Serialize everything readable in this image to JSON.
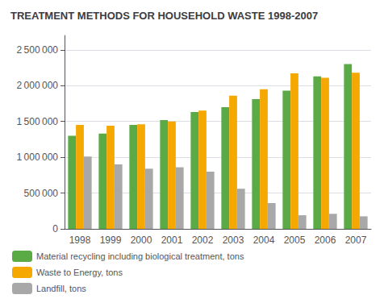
{
  "chart_data": {
    "type": "bar",
    "title": "TREATMENT METHODS FOR HOUSEHOLD WASTE 1998-2007",
    "categories": [
      "1998",
      "1999",
      "2000",
      "2001",
      "2002",
      "2003",
      "2004",
      "2005",
      "2006",
      "2007"
    ],
    "series": [
      {
        "name": "Material recycling including biological treatment, tons",
        "color": "#5aaa46",
        "values": [
          1300000,
          1330000,
          1450000,
          1520000,
          1630000,
          1700000,
          1810000,
          1930000,
          2130000,
          2300000
        ]
      },
      {
        "name": "Waste to Energy, tons",
        "color": "#f5a800",
        "values": [
          1450000,
          1440000,
          1460000,
          1500000,
          1650000,
          1860000,
          1950000,
          2170000,
          2110000,
          2180000
        ]
      },
      {
        "name": "Landfill, tons",
        "color": "#a8a8a8",
        "values": [
          1010000,
          900000,
          840000,
          860000,
          800000,
          560000,
          360000,
          190000,
          210000,
          175000
        ]
      }
    ],
    "ylim": [
      0,
      2700000
    ],
    "yticks": [
      0,
      {
        "value": 500000,
        "label": "500 000"
      },
      {
        "value": 1000000,
        "label": "1 000 000"
      },
      {
        "value": 1500000,
        "label": "1 500 000"
      },
      {
        "value": 2000000,
        "label": "2 000 000"
      },
      {
        "value": 2500000,
        "label": "2 500 000"
      }
    ],
    "grid": true,
    "legend": "lower left"
  }
}
